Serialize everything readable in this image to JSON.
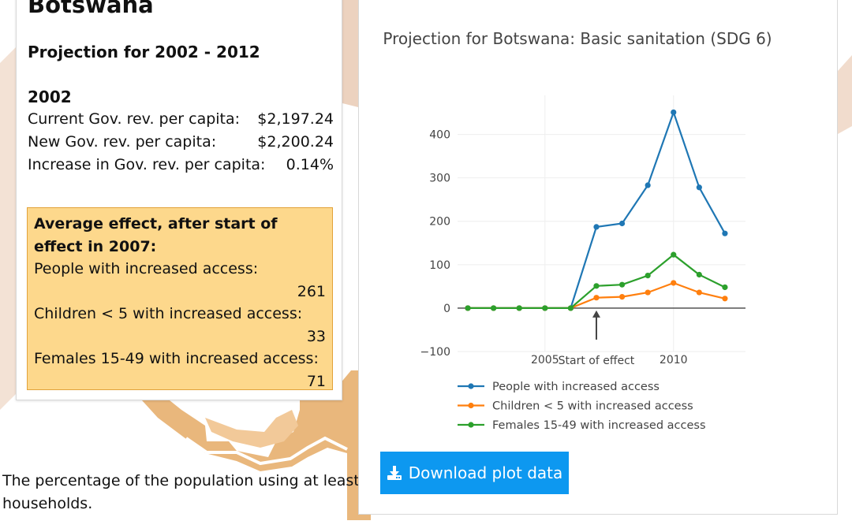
{
  "info": {
    "country": "Botswana",
    "projection_heading": "Projection for 2002 - 2012",
    "year": "2002",
    "stats": [
      {
        "label": "Current Gov. rev. per capita:",
        "value": "$2,197.24"
      },
      {
        "label": "New Gov. rev. per capita:",
        "value": "$2,200.24"
      },
      {
        "label": "Increase in Gov. rev. per capita:",
        "value": "0.14%"
      }
    ],
    "effect": {
      "title": "Average effect, after start of effect in 2007:",
      "items": [
        {
          "label": "People with increased access:",
          "value": "261"
        },
        {
          "label": "Children < 5 with increased access:",
          "value": "33"
        },
        {
          "label": "Females 15-49 with increased access:",
          "value": "71"
        }
      ]
    }
  },
  "description": "The percentage of the population using at least households.",
  "download_label": "Download plot data",
  "colors": {
    "map_fill": "#e7b57b",
    "map_light": "#f0d8c4",
    "effect_box": "#fdd88c",
    "button": "#0d98f0"
  },
  "chart_data": {
    "type": "line",
    "title": "Projection for Botswana: Basic sanitation (SDG 6)",
    "x": [
      2002,
      2003,
      2004,
      2005,
      2006,
      2007,
      2008,
      2009,
      2010,
      2011,
      2012
    ],
    "x_ticks": [
      2005,
      2010
    ],
    "x_tick_labels": [
      "2005",
      "2010"
    ],
    "y_ticks": [
      -100,
      0,
      100,
      200,
      300,
      400
    ],
    "y_tick_labels": [
      "−100",
      "0",
      "100",
      "200",
      "300",
      "400"
    ],
    "xlim": [
      2001.6,
      2012.8
    ],
    "ylim": [
      -100,
      490
    ],
    "grid": true,
    "legend_position": "bottom",
    "series": [
      {
        "name": "People with increased access",
        "color": "#1f77b4",
        "values": [
          0,
          0,
          0,
          0,
          0,
          187,
          195,
          283,
          451,
          278,
          172
        ]
      },
      {
        "name": "Children < 5 with increased access",
        "color": "#ff7f0e",
        "values": [
          0,
          0,
          0,
          0,
          0,
          24,
          26,
          36,
          58,
          36,
          22
        ]
      },
      {
        "name": "Females 15-49 with increased access",
        "color": "#2ca02c",
        "values": [
          0,
          0,
          0,
          0,
          0,
          51,
          54,
          75,
          123,
          77,
          48
        ]
      }
    ],
    "annotation": {
      "text": "Start of effect",
      "x": 2007,
      "y": 0
    }
  }
}
